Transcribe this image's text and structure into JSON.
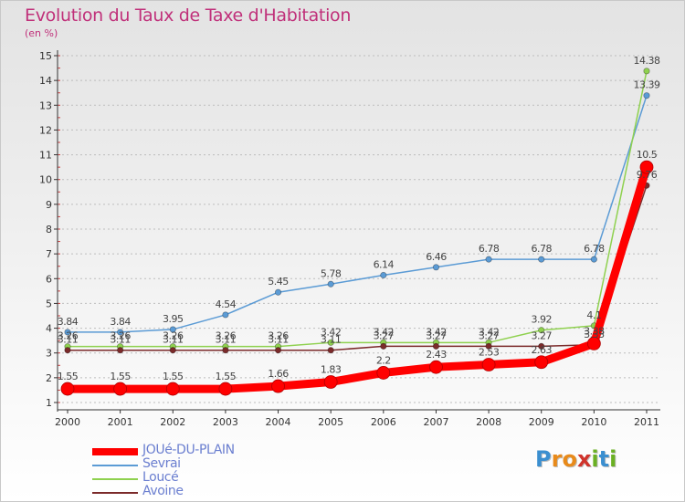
{
  "chart_data": {
    "type": "line",
    "title": "Evolution du Taux de Taxe d'Habitation",
    "subtitle": "(en %)",
    "xlabel": "",
    "ylabel": "",
    "ylim": [
      1,
      15
    ],
    "yticks": [
      "1",
      "2",
      "3",
      "4",
      "5",
      "6",
      "7",
      "8",
      "9",
      "10",
      "11",
      "12",
      "13",
      "14",
      "15"
    ],
    "categories": [
      "2000",
      "2001",
      "2002",
      "2003",
      "2004",
      "2005",
      "2006",
      "2007",
      "2008",
      "2009",
      "2010",
      "2011"
    ],
    "grid": "horizontal dashed",
    "legend_position": "bottom-left",
    "series": [
      {
        "name": "JOUé-DU-PLAIN",
        "color": "#ff0000",
        "values": [
          1.55,
          1.55,
          1.55,
          1.55,
          1.66,
          1.83,
          2.2,
          2.43,
          2.53,
          2.63,
          3.38,
          10.5
        ],
        "labels": [
          "1.55",
          "1.55",
          "1.55",
          "1.55",
          "1.66",
          "1.83",
          "2.2",
          "2.43",
          "2.53",
          "2.63",
          "3.38",
          "10.5"
        ]
      },
      {
        "name": "Sevrai",
        "color": "#5b9bd5",
        "values": [
          3.84,
          3.84,
          3.95,
          4.54,
          5.45,
          5.78,
          6.14,
          6.46,
          6.78,
          6.78,
          6.78,
          13.39
        ],
        "labels": [
          "3.84",
          "3.84",
          "3.95",
          "4.54",
          "5.45",
          "5.78",
          "6.14",
          "6.46",
          "6.78",
          "6.78",
          "6.78",
          "13.39"
        ]
      },
      {
        "name": "Loucé",
        "color": "#8fd14f",
        "values": [
          3.26,
          3.26,
          3.26,
          3.26,
          3.26,
          3.42,
          3.42,
          3.42,
          3.42,
          3.92,
          4.1,
          14.38
        ],
        "labels": [
          "3.26",
          "3.26",
          "3.26",
          "3.26",
          "3.26",
          "3.42",
          "3.42",
          "3.42",
          "3.42",
          "3.92",
          "4.1",
          "14.38"
        ]
      },
      {
        "name": "Avoine",
        "color": "#7b2a2a",
        "values": [
          3.11,
          3.11,
          3.11,
          3.11,
          3.11,
          3.11,
          3.27,
          3.27,
          3.27,
          3.27,
          3.33,
          9.76
        ],
        "labels": [
          "3.11",
          "3.11",
          "3.11",
          "3.11",
          "3.11",
          "3.11",
          "3.27",
          "3.27",
          "3.27",
          "3.27",
          "3.33",
          "9.76"
        ]
      }
    ]
  },
  "logo": {
    "text": "Proxiti",
    "letters": [
      "P",
      "r",
      "o",
      "x",
      "i",
      "t",
      "i"
    ],
    "colors": [
      "#3b8fd0",
      "#e88a1a",
      "#e88a1a",
      "#d0342c",
      "#6ab023",
      "#3b8fd0",
      "#6ab023"
    ]
  }
}
